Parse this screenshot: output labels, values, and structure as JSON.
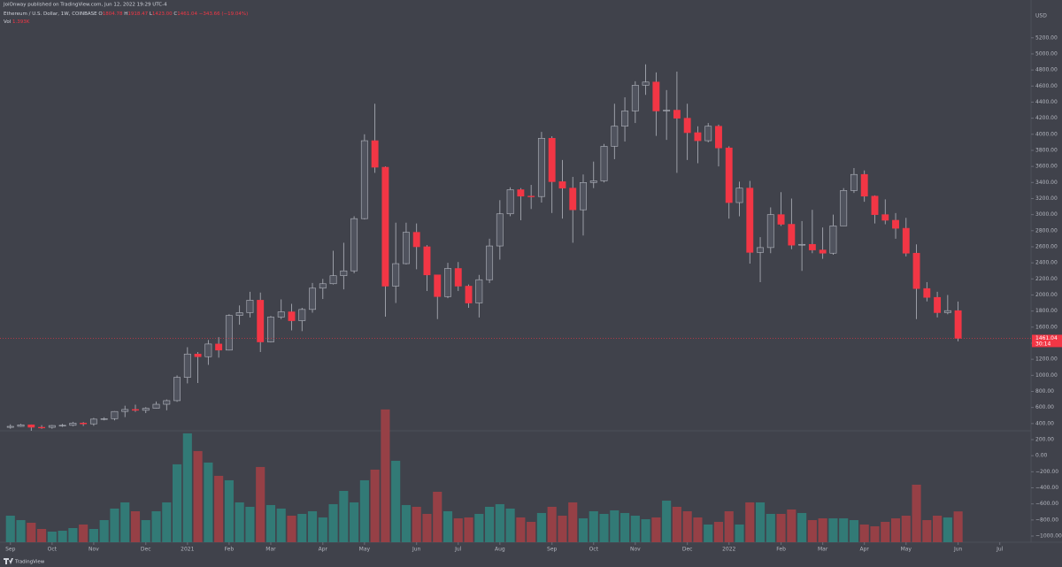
{
  "header": "JoiOnway published on TradingView.com, Jun 12, 2022 19:29 UTC-4",
  "legend": {
    "symbol": "Ethereum / U.S. Dollar, 1W, COINBASE",
    "fields": [
      "O",
      "H",
      "L",
      "C"
    ],
    "values": [
      "1804.78",
      "1918.47",
      "1423.00",
      "1461.04"
    ],
    "change": "−343.66 (−19.04%)",
    "volume_name": "Vol",
    "volume_value": "1.393K"
  },
  "currency": "USD",
  "countdown": "30:14",
  "brand": "TradingView",
  "chart_data": {
    "type": "candlestick",
    "xlim": [
      -1,
      98
    ],
    "xticks": [
      {
        "value": 0,
        "label": "Sep"
      },
      {
        "value": 4,
        "label": "Oct"
      },
      {
        "value": 8,
        "label": "Nov"
      },
      {
        "value": 13,
        "label": "Dec"
      },
      {
        "value": 17,
        "label": "2021"
      },
      {
        "value": 21,
        "label": "Feb"
      },
      {
        "value": 25,
        "label": "Mar"
      },
      {
        "value": 30,
        "label": "Apr"
      },
      {
        "value": 34,
        "label": "May"
      },
      {
        "value": 39,
        "label": "Jun"
      },
      {
        "value": 43,
        "label": "Jul"
      },
      {
        "value": 47,
        "label": "Aug"
      },
      {
        "value": 52,
        "label": "Sep"
      },
      {
        "value": 56,
        "label": "Oct"
      },
      {
        "value": 60,
        "label": "Nov"
      },
      {
        "value": 65,
        "label": "Dec"
      },
      {
        "value": 69,
        "label": "2022"
      },
      {
        "value": 74,
        "label": "Feb"
      },
      {
        "value": 78,
        "label": "Mar"
      },
      {
        "value": 82,
        "label": "Apr"
      },
      {
        "value": 86,
        "label": "May"
      },
      {
        "value": 91,
        "label": "Jun"
      },
      {
        "value": 95,
        "label": "Jul"
      }
    ],
    "ylim": [
      -1077,
      5671
    ],
    "yticks": [
      {
        "value": -1000,
        "label": "−1000.00"
      },
      {
        "value": -800,
        "label": "−800.00"
      },
      {
        "value": -600,
        "label": "−600.00"
      },
      {
        "value": -400,
        "label": "−400.00"
      },
      {
        "value": -200,
        "label": "−200.00"
      },
      {
        "value": 0,
        "label": "0.00"
      },
      {
        "value": 200,
        "label": "200.00"
      },
      {
        "value": 400,
        "label": "400.00"
      },
      {
        "value": 600,
        "label": "600.00"
      },
      {
        "value": 800,
        "label": "800.00"
      },
      {
        "value": 1000,
        "label": "1000.00"
      },
      {
        "value": 1200,
        "label": "1200.00"
      },
      {
        "value": 1400,
        "label": "1400.00"
      },
      {
        "value": 1600,
        "label": "1600.00"
      },
      {
        "value": 1800,
        "label": "1800.00"
      },
      {
        "value": 2000,
        "label": "2000.00"
      },
      {
        "value": 2200,
        "label": "2200.00"
      },
      {
        "value": 2400,
        "label": "2400.00"
      },
      {
        "value": 2600,
        "label": "2600.00"
      },
      {
        "value": 2800,
        "label": "2800.00"
      },
      {
        "value": 3000,
        "label": "3000.00"
      },
      {
        "value": 3200,
        "label": "3200.00"
      },
      {
        "value": 3400,
        "label": "3400.00"
      },
      {
        "value": 3600,
        "label": "3600.00"
      },
      {
        "value": 3800,
        "label": "3800.00"
      },
      {
        "value": 4000,
        "label": "4000.00"
      },
      {
        "value": 4200,
        "label": "4200.00"
      },
      {
        "value": 4400,
        "label": "4400.00"
      },
      {
        "value": 4600,
        "label": "4600.00"
      },
      {
        "value": 4800,
        "label": "4800.00"
      },
      {
        "value": 5000,
        "label": "5000.00"
      },
      {
        "value": 5200,
        "label": "5200.00"
      }
    ],
    "grid": false,
    "volume_ylim": [
      0,
      24.5
    ],
    "up_color": "#50535e",
    "up_border": "#b2b5be",
    "down_color": "#f23645",
    "wick_color": "#b2b5be",
    "volume_up_color": "#327a76",
    "volume_down_color": "#964046",
    "open": [
      353,
      365,
      384,
      354,
      353,
      375,
      378,
      406,
      396,
      455,
      460,
      550,
      575,
      565,
      590,
      640,
      685,
      975,
      1265,
      1232,
      1390,
      1314,
      1745,
      1780,
      1935,
      1416,
      1725,
      1790,
      1680,
      1820,
      2085,
      2140,
      2240,
      2300,
      2950,
      3920,
      3590,
      2110,
      2390,
      2780,
      2600,
      2250,
      1980,
      2330,
      2110,
      1900,
      2190,
      2610,
      3010,
      3310,
      3230,
      3225,
      3950,
      3410,
      3330,
      3060,
      3400,
      3420,
      3850,
      4100,
      4290,
      4610,
      4650,
      4290,
      4300,
      4200,
      4020,
      3920,
      4100,
      3830,
      3150,
      3330,
      2530,
      2590,
      3000,
      2880,
      2620,
      2630,
      2560,
      2520,
      2860,
      3300,
      3500,
      3230,
      3000,
      2930,
      2830,
      2520,
      2080,
      1970,
      1780,
      1804.78
    ],
    "high": [
      390,
      397,
      388,
      380,
      382,
      396,
      421,
      418,
      470,
      478,
      555,
      622,
      635,
      604,
      675,
      700,
      1000,
      1350,
      1290,
      1440,
      1475,
      1760,
      1870,
      2040,
      2030,
      1740,
      1945,
      1890,
      1840,
      2150,
      2200,
      2550,
      2650,
      2980,
      4000,
      4380,
      3600,
      2900,
      2900,
      2890,
      2620,
      2250,
      2400,
      2410,
      2130,
      2250,
      2700,
      3180,
      3340,
      3330,
      3370,
      4030,
      3975,
      3680,
      3470,
      3500,
      3660,
      3880,
      4380,
      4460,
      4660,
      4870,
      4770,
      4550,
      4780,
      4380,
      4100,
      4140,
      4120,
      3850,
      3410,
      3420,
      2720,
      3090,
      3280,
      3200,
      2920,
      3060,
      2840,
      3000,
      3330,
      3580,
      3550,
      3240,
      3190,
      3020,
      2960,
      2630,
      2160,
      2040,
      2000,
      1918.47
    ],
    "low": [
      335,
      360,
      310,
      335,
      335,
      358,
      366,
      370,
      372,
      440,
      440,
      480,
      545,
      530,
      585,
      565,
      670,
      900,
      905,
      1130,
      1220,
      1310,
      1630,
      1720,
      1290,
      1410,
      1700,
      1560,
      1550,
      1780,
      1950,
      2130,
      2070,
      2270,
      2940,
      3520,
      1730,
      1900,
      2380,
      2320,
      2050,
      1700,
      1960,
      2050,
      1840,
      1720,
      2150,
      2440,
      2980,
      2930,
      3070,
      3150,
      3020,
      2950,
      2650,
      2740,
      3330,
      3400,
      3690,
      3910,
      4140,
      4490,
      3980,
      3930,
      3520,
      3680,
      3640,
      3900,
      3600,
      2950,
      2980,
      2390,
      2160,
      2520,
      2860,
      2570,
      2300,
      2520,
      2450,
      2500,
      2860,
      3270,
      3160,
      2890,
      2880,
      2700,
      2480,
      1700,
      1920,
      1720,
      1760,
      1423
    ],
    "close": [
      365,
      384,
      354,
      353,
      375,
      378,
      406,
      396,
      455,
      460,
      550,
      575,
      565,
      590,
      640,
      685,
      975,
      1265,
      1232,
      1390,
      1314,
      1745,
      1780,
      1935,
      1416,
      1725,
      1790,
      1680,
      1820,
      2085,
      2140,
      2240,
      2300,
      2950,
      3920,
      3590,
      2110,
      2390,
      2780,
      2600,
      2250,
      1980,
      2330,
      2110,
      1900,
      2190,
      2610,
      3010,
      3310,
      3230,
      3225,
      3950,
      3410,
      3330,
      3060,
      3400,
      3420,
      3850,
      4100,
      4290,
      4610,
      4650,
      4290,
      4300,
      4200,
      4020,
      3920,
      4100,
      3830,
      3150,
      3330,
      2530,
      2590,
      3000,
      2880,
      2620,
      2630,
      2560,
      2520,
      2860,
      3300,
      3500,
      3230,
      3000,
      2930,
      2830,
      2520,
      2080,
      1970,
      1780,
      1805,
      1461.04
    ],
    "volume": [
      1.2,
      1.0,
      0.88,
      0.6,
      0.48,
      0.52,
      0.64,
      0.8,
      0.6,
      1.0,
      1.52,
      1.8,
      1.4,
      1.0,
      1.4,
      1.8,
      3.52,
      4.92,
      4.12,
      3.6,
      3.0,
      2.8,
      1.8,
      1.6,
      3.4,
      1.68,
      1.52,
      1.2,
      1.28,
      1.4,
      1.12,
      1.72,
      2.32,
      1.8,
      2.8,
      3.28,
      6.0,
      3.68,
      1.68,
      1.6,
      1.28,
      2.28,
      1.4,
      1.08,
      1.12,
      1.28,
      1.6,
      1.72,
      1.52,
      1.12,
      0.92,
      1.32,
      1.6,
      1.2,
      1.8,
      1.08,
      1.4,
      1.28,
      1.44,
      1.32,
      1.2,
      1.04,
      1.12,
      1.88,
      1.6,
      1.4,
      1.12,
      0.8,
      0.92,
      1.4,
      0.8,
      1.8,
      1.8,
      1.28,
      1.28,
      1.48,
      1.32,
      1.0,
      1.08,
      1.08,
      1.08,
      1.0,
      0.8,
      0.72,
      0.92,
      1.08,
      1.2,
      2.6,
      1.0,
      1.2,
      1.12,
      1.393
    ]
  }
}
